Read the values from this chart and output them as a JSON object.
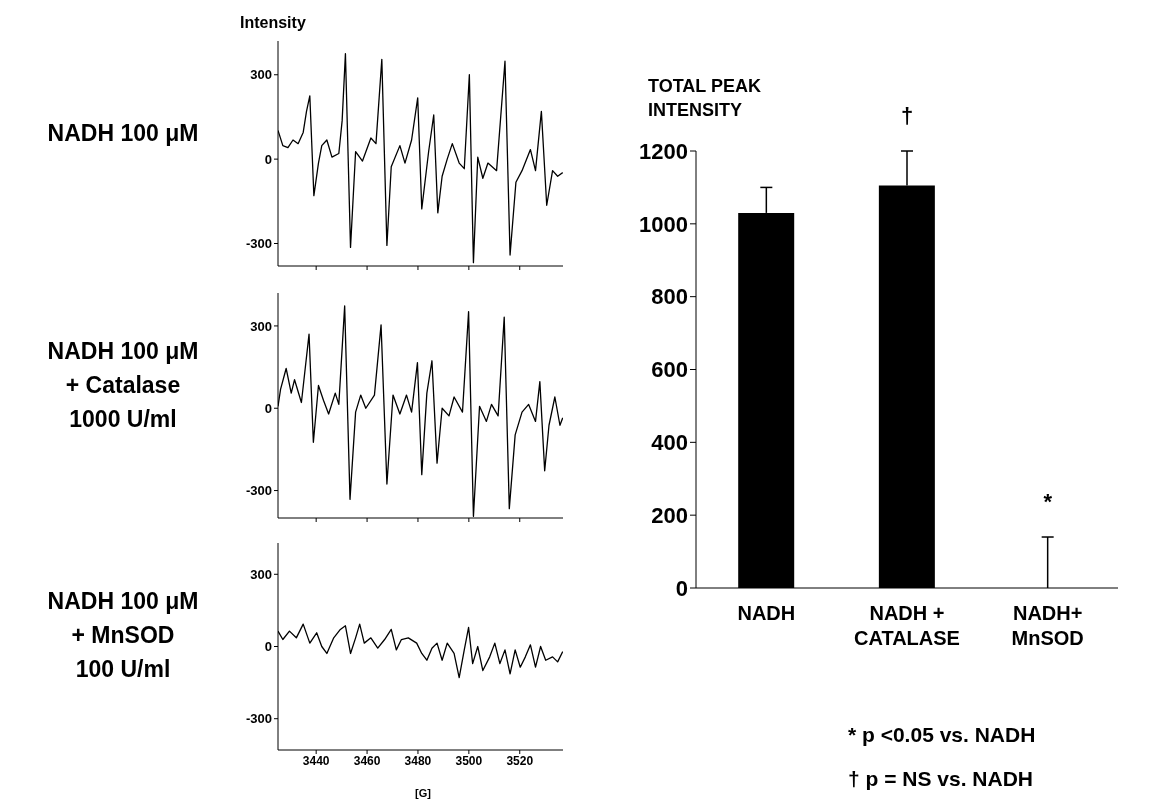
{
  "chart_data": [
    {
      "type": "line",
      "title": "NADH 100 μM",
      "ylabel": "Intensity",
      "xlim": [
        3425,
        3537
      ],
      "xticks": [
        3440,
        3460,
        3480,
        3500,
        3520
      ],
      "ylim": [
        -380,
        420
      ],
      "yticks": [
        -300,
        0,
        300
      ],
      "tick_labels": "y",
      "grid": false,
      "legend": false,
      "marker": "none",
      "line_style": "solid",
      "series": [
        {
          "color": "#000000",
          "x": [
            3425,
            3426.9,
            3428.9,
            3430.9,
            3432.9,
            3434.9,
            3436.2,
            3437.5,
            3439.1,
            3440.9,
            3442.2,
            3444.2,
            3446.2,
            3448.9,
            3450.2,
            3451.5,
            3453.5,
            3455.5,
            3458.2,
            3461.5,
            3463.5,
            3465.8,
            3467.8,
            3469.5,
            3472.9,
            3474.9,
            3477.5,
            3479.9,
            3481.5,
            3484.2,
            3486.2,
            3487.8,
            3489.5,
            3491.5,
            3493.5,
            3496.2,
            3498.2,
            3500.2,
            3501.8,
            3503.5,
            3505.5,
            3507.5,
            3510.9,
            3514.2,
            3516.2,
            3518.5,
            3520.9,
            3524.2,
            3526.2,
            3528.5,
            3530.6,
            3532.9,
            3534.9,
            3536.9
          ],
          "values": [
            102,
            48,
            41,
            68,
            55,
            95,
            170,
            225,
            -130,
            -14,
            48,
            68,
            7,
            20,
            136,
            375,
            -314,
            27,
            -7,
            75,
            55,
            355,
            -307,
            -27,
            48,
            -14,
            68,
            218,
            -177,
            27,
            157,
            -191,
            -61,
            0,
            55,
            -14,
            -34,
            300,
            -368,
            7,
            -68,
            -14,
            -41,
            348,
            -341,
            -82,
            -41,
            34,
            -41,
            170,
            -164,
            -41,
            -61,
            -48
          ]
        }
      ]
    },
    {
      "type": "line",
      "title": "NADH 100 μM\n+ Catalase\n1000 U/ml",
      "xlim": [
        3425,
        3537
      ],
      "xticks": [
        3440,
        3460,
        3480,
        3500,
        3520
      ],
      "ylim": [
        -400,
        420
      ],
      "yticks": [
        -300,
        0,
        300
      ],
      "tick_labels": "y",
      "grid": false,
      "legend": false,
      "marker": "none",
      "line_style": "solid",
      "series": [
        {
          "color": "#000000",
          "x": [
            3425,
            3426,
            3428.2,
            3430.2,
            3431.5,
            3434.2,
            3437.2,
            3438.9,
            3440.9,
            3442.9,
            3444.9,
            3447.5,
            3448.9,
            3451.2,
            3453.3,
            3455.5,
            3457.5,
            3459.5,
            3462.9,
            3465.5,
            3467.8,
            3470.2,
            3472.9,
            3475.5,
            3477.5,
            3479.8,
            3481.5,
            3483.5,
            3485.5,
            3487.5,
            3489.5,
            3492.2,
            3494.2,
            3497.5,
            3499.9,
            3501.8,
            3504.2,
            3506.9,
            3508.9,
            3511.5,
            3513.9,
            3515.9,
            3518.2,
            3520.9,
            3523.5,
            3526.2,
            3527.9,
            3529.8,
            3531.5,
            3533.8,
            3535.8,
            3536.9
          ],
          "values": [
            7,
            69,
            145,
            55,
            104,
            21,
            270,
            -124,
            83,
            28,
            -21,
            55,
            14,
            373,
            -332,
            -14,
            48,
            0,
            48,
            304,
            -276,
            48,
            -21,
            48,
            -14,
            166,
            -242,
            55,
            173,
            -200,
            0,
            -28,
            41,
            -14,
            352,
            -394,
            7,
            -48,
            14,
            -28,
            332,
            -366,
            -97,
            -14,
            14,
            -48,
            97,
            -228,
            -62,
            41,
            -62,
            -35
          ]
        }
      ]
    },
    {
      "type": "line",
      "title": "NADH 100 μM\n+ MnSOD\n100 U/ml",
      "xlabel": "[G]",
      "xlim": [
        3425,
        3537
      ],
      "xticks": [
        3440,
        3460,
        3480,
        3500,
        3520
      ],
      "ylim": [
        -430,
        430
      ],
      "yticks": [
        -300,
        0,
        300
      ],
      "grid": false,
      "legend": false,
      "marker": "none",
      "line_style": "solid",
      "series": [
        {
          "color": "#000000",
          "x": [
            3425,
            3426.9,
            3429.5,
            3432.2,
            3434.9,
            3437.5,
            3440.2,
            3442.2,
            3444.2,
            3446.9,
            3449.5,
            3451.5,
            3453.5,
            3455.5,
            3457.1,
            3458.9,
            3461.5,
            3464.2,
            3466.9,
            3469.5,
            3471.5,
            3473.5,
            3476.2,
            3479.5,
            3481.5,
            3483.5,
            3485.5,
            3487.5,
            3489.5,
            3491.5,
            3494.2,
            3496.2,
            3498.2,
            3499.9,
            3501.5,
            3503.5,
            3505.5,
            3508.2,
            3510.2,
            3512.2,
            3514.2,
            3516.2,
            3518.2,
            3520.2,
            3522.2,
            3524.2,
            3526.2,
            3528.2,
            3530.2,
            3532.9,
            3534.9,
            3536.9
          ],
          "values": [
            64,
            29,
            64,
            36,
            93,
            14,
            57,
            0,
            -29,
            36,
            71,
            86,
            -29,
            36,
            93,
            14,
            36,
            -7,
            29,
            71,
            -14,
            29,
            36,
            14,
            -29,
            -57,
            -7,
            14,
            -57,
            14,
            -29,
            -129,
            -14,
            79,
            -71,
            0,
            -100,
            -43,
            14,
            -71,
            -14,
            -114,
            -14,
            -86,
            -43,
            7,
            -86,
            0,
            -57,
            -43,
            -64,
            -21
          ]
        }
      ]
    },
    {
      "type": "bar",
      "ylabel": "TOTAL PEAK INTENSITY",
      "categories": [
        "NADH",
        "NADH + CATALASE",
        "NADH+ MnSOD"
      ],
      "values": [
        1030,
        1105,
        0
      ],
      "color": "#000000",
      "errors": [
        [
          1030,
          1100
        ],
        [
          1105,
          1200
        ],
        [
          0,
          140
        ]
      ],
      "ylim": [
        0,
        1200
      ],
      "yticks": [
        0,
        200,
        400,
        600,
        800,
        1000,
        1200
      ],
      "grid": false,
      "legend": false,
      "annotations": [
        {
          "text": "†",
          "x": "NADH + CATALASE",
          "y": 1200
        },
        {
          "text": "*",
          "x": "NADH+ MnSOD",
          "y": 140
        },
        "* p <0.05 vs. NADH",
        "† p = NS vs. NADH"
      ]
    }
  ]
}
